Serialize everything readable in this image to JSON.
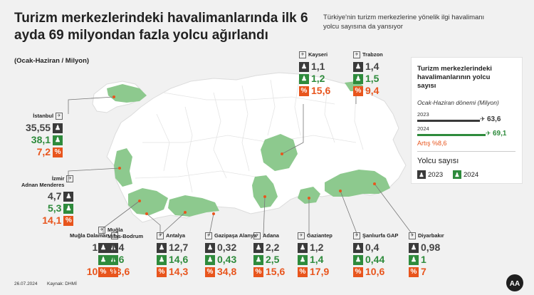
{
  "title": "Turizm merkezlerindeki havalimanlarında ilk 6 ayda 69 milyondan fazla yolcu ağırlandı",
  "subtitle": "Türkiye'nin turizm merkezlerine yönelik ilgi havalimanı yolcu sayısına da yansıyor",
  "unit": "(Ocak-Haziran / Milyon)",
  "date": "26.07.2024",
  "source": "Kaynak: DHMİ",
  "colors": {
    "y2023": "#3a3a3a",
    "y2024": "#2e8b3c",
    "growth": "#e8551d",
    "map_fill": "#ffffff",
    "highlight": "#8dc98e"
  },
  "panel": {
    "title": "Turizm merkezlerindeki havalimanlarının yolcu sayısı",
    "subtitle": "Ocak-Haziran dönemi (Milyon)",
    "year_2023": "2023",
    "year_2024": "2024",
    "value_2023": "63,6",
    "value_2024": "69,1",
    "growth": "Artış %8,6",
    "legend_title": "Yolcu sayısı",
    "legend_2023": "2023",
    "legend_2024": "2024"
  },
  "chart_data": {
    "type": "table",
    "title": "Turizm merkezlerindeki havalimanlarında ilk 6 ayda 69 milyondan fazla yolcu ağırlandı",
    "unit": "Milyon",
    "columns": [
      "2023",
      "2024",
      "%"
    ],
    "airports": [
      {
        "name": "İstanbul",
        "v2023": "35,55",
        "v2024": "38,1",
        "pct": "7,2"
      },
      {
        "name": "İzmir Adnan Menderes",
        "name1": "İzmir",
        "name2": "Adnan Menderes",
        "v2023": "4,7",
        "v2024": "5,3",
        "pct": "14,1"
      },
      {
        "name": "Muğla Dalaman",
        "v2023": "1,8",
        "v2024": "2",
        "pct": "10,9"
      },
      {
        "name": "Muğla Milas-Bodrum",
        "name1": "Muğla",
        "name2": "Milas-Bodrum",
        "v2023": "1,4",
        "v2024": "1,6",
        "pct": "13,6"
      },
      {
        "name": "Antalya",
        "v2023": "12,7",
        "v2024": "14,6",
        "pct": "14,3"
      },
      {
        "name": "Gazipaşa Alanya",
        "v2023": "0,32",
        "v2024": "0,43",
        "pct": "34,8"
      },
      {
        "name": "Adana",
        "v2023": "2,2",
        "v2024": "2,5",
        "pct": "15,6"
      },
      {
        "name": "Gaziantep",
        "v2023": "1,2",
        "v2024": "1,4",
        "pct": "17,9"
      },
      {
        "name": "Şanlıurfa GAP",
        "v2023": "0,4",
        "v2024": "0,44",
        "pct": "10,6"
      },
      {
        "name": "Diyarbakır",
        "v2023": "0,98",
        "v2024": "1",
        "pct": "7"
      },
      {
        "name": "Kayseri",
        "v2023": "1,1",
        "v2024": "1,2",
        "pct": "15,6"
      },
      {
        "name": "Trabzon",
        "v2023": "1,4",
        "v2024": "1,5",
        "pct": "9,4"
      }
    ],
    "totals": {
      "v2023": 63.6,
      "v2024": 69.1,
      "growth_pct": 8.6
    }
  }
}
